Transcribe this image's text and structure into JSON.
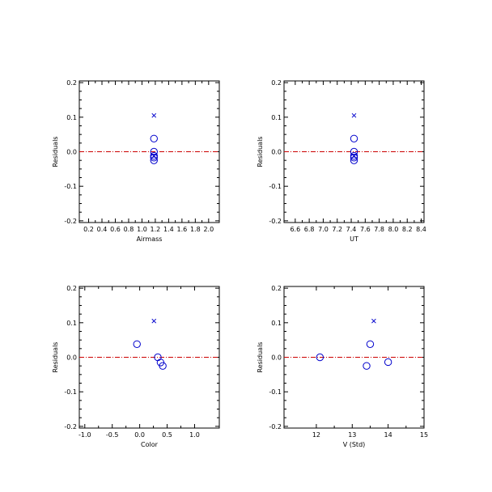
{
  "colors": {
    "points": "#0000cc",
    "zero_line": "#cc0000",
    "axes": "#000000"
  },
  "chart_data": [
    {
      "type": "scatter",
      "xlabel": "Airmass",
      "ylabel": "Residuals",
      "xlim": [
        0.06,
        2.16
      ],
      "ylim": [
        -0.205,
        0.205
      ],
      "xticks": [
        "0.2",
        "0.4",
        "0.6",
        "0.8",
        "1.0",
        "1.2",
        "1.4",
        "1.6",
        "1.8",
        "2.0"
      ],
      "xtick_values": [
        0.2,
        0.4,
        0.6,
        0.8,
        1.0,
        1.2,
        1.4,
        1.6,
        1.8,
        2.0
      ],
      "yticks": [
        "-0.2",
        "-0.1",
        "0.0",
        "0.1",
        "0.2"
      ],
      "ytick_values": [
        -0.2,
        -0.1,
        0.0,
        0.1,
        0.2
      ],
      "zero_line": true,
      "series": [
        {
          "marker": "circle",
          "points": [
            [
              1.18,
              0.038
            ],
            [
              1.18,
              0.0
            ],
            [
              1.18,
              -0.012
            ],
            [
              1.18,
              -0.017
            ],
            [
              1.18,
              -0.025
            ]
          ]
        },
        {
          "marker": "x",
          "points": [
            [
              1.18,
              0.105
            ],
            [
              1.18,
              -0.012
            ]
          ]
        }
      ]
    },
    {
      "type": "scatter",
      "xlabel": "UT",
      "ylabel": "Residuals",
      "xlim": [
        6.44,
        8.44
      ],
      "ylim": [
        -0.205,
        0.205
      ],
      "xticks": [
        "6.6",
        "6.8",
        "7.0",
        "7.2",
        "7.4",
        "7.6",
        "7.8",
        "8.0",
        "8.2",
        "8.4"
      ],
      "xtick_values": [
        6.6,
        6.8,
        7.0,
        7.2,
        7.4,
        7.6,
        7.8,
        8.0,
        8.2,
        8.4
      ],
      "yticks": [
        "-0.2",
        "-0.1",
        "0.0",
        "0.1",
        "0.2"
      ],
      "ytick_values": [
        -0.2,
        -0.1,
        0.0,
        0.1,
        0.2
      ],
      "zero_line": true,
      "series": [
        {
          "marker": "circle",
          "points": [
            [
              7.44,
              0.038
            ],
            [
              7.44,
              0.0
            ],
            [
              7.44,
              -0.012
            ],
            [
              7.44,
              -0.017
            ],
            [
              7.44,
              -0.025
            ]
          ]
        },
        {
          "marker": "x",
          "points": [
            [
              7.44,
              0.105
            ],
            [
              7.44,
              -0.012
            ]
          ]
        }
      ]
    },
    {
      "type": "scatter",
      "xlabel": "Color",
      "ylabel": "Residuals",
      "xlim": [
        -1.1,
        1.45
      ],
      "ylim": [
        -0.205,
        0.205
      ],
      "xticks": [
        "-1.0",
        "-0.5",
        "0.0",
        "0.5",
        "1.0"
      ],
      "xtick_values": [
        -1.0,
        -0.5,
        0.0,
        0.5,
        1.0
      ],
      "yticks": [
        "-0.2",
        "-0.1",
        "0.0",
        "0.1",
        "0.2"
      ],
      "ytick_values": [
        -0.2,
        -0.1,
        0.0,
        0.1,
        0.2
      ],
      "zero_line": true,
      "series": [
        {
          "marker": "circle",
          "points": [
            [
              -0.05,
              0.038
            ],
            [
              0.33,
              0.0
            ],
            [
              0.38,
              -0.015
            ],
            [
              0.42,
              -0.025
            ]
          ]
        },
        {
          "marker": "x",
          "points": [
            [
              0.26,
              0.105
            ]
          ]
        }
      ]
    },
    {
      "type": "scatter",
      "xlabel": "V (Std)",
      "ylabel": "Residuals",
      "xlim": [
        11.1,
        15.0
      ],
      "ylim": [
        -0.205,
        0.205
      ],
      "xticks": [
        "12",
        "13",
        "14",
        "15"
      ],
      "xtick_values": [
        12,
        13,
        14,
        15
      ],
      "yticks": [
        "-0.2",
        "-0.1",
        "0.0",
        "0.1",
        "0.2"
      ],
      "ytick_values": [
        -0.2,
        -0.1,
        0.0,
        0.1,
        0.2
      ],
      "zero_line": true,
      "series": [
        {
          "marker": "circle",
          "points": [
            [
              12.1,
              0.0
            ],
            [
              13.5,
              0.038
            ],
            [
              13.4,
              -0.025
            ],
            [
              14.0,
              -0.014
            ]
          ]
        },
        {
          "marker": "x",
          "points": [
            [
              13.6,
              0.105
            ]
          ]
        }
      ]
    }
  ]
}
